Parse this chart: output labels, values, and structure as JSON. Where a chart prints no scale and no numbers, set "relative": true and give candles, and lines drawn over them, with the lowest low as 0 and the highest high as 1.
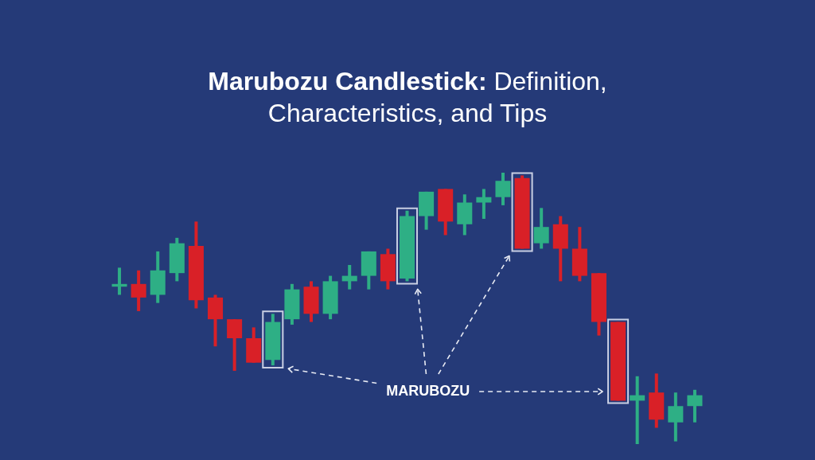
{
  "chart_data": {
    "type": "candlestick",
    "title": "Marubozu Candlestick: Definition, Characteristics, and Tips",
    "categories": [
      null,
      null,
      null,
      null,
      null,
      null,
      null,
      null,
      null,
      null,
      null,
      null,
      null,
      null,
      null,
      null,
      null,
      null,
      null,
      null,
      null,
      null,
      null,
      null,
      null,
      null,
      null,
      null,
      null,
      null,
      null
    ],
    "ohlc": [
      [
        0.58,
        0.65,
        0.55,
        0.59
      ],
      [
        0.59,
        0.64,
        0.49,
        0.54
      ],
      [
        0.55,
        0.71,
        0.52,
        0.64
      ],
      [
        0.63,
        0.76,
        0.6,
        0.74
      ],
      [
        0.73,
        0.82,
        0.5,
        0.53
      ],
      [
        0.54,
        0.55,
        0.36,
        0.46
      ],
      [
        0.46,
        0.46,
        0.27,
        0.39
      ],
      [
        0.39,
        0.43,
        0.3,
        0.3
      ],
      [
        0.31,
        0.48,
        0.29,
        0.45
      ],
      [
        0.46,
        0.59,
        0.44,
        0.57
      ],
      [
        0.58,
        0.6,
        0.45,
        0.48
      ],
      [
        0.48,
        0.62,
        0.46,
        0.6
      ],
      [
        0.6,
        0.66,
        0.57,
        0.62
      ],
      [
        0.62,
        0.71,
        0.57,
        0.71
      ],
      [
        0.7,
        0.72,
        0.57,
        0.6
      ],
      [
        0.61,
        0.86,
        0.6,
        0.84
      ],
      [
        0.84,
        0.93,
        0.79,
        0.93
      ],
      [
        0.94,
        0.94,
        0.77,
        0.82
      ],
      [
        0.81,
        0.92,
        0.77,
        0.89
      ],
      [
        0.89,
        0.94,
        0.83,
        0.91
      ],
      [
        0.91,
        1,
        0.88,
        0.97
      ],
      [
        0.98,
        0.99,
        0.72,
        0.72
      ],
      [
        0.74,
        0.87,
        0.72,
        0.8
      ],
      [
        0.81,
        0.84,
        0.6,
        0.72
      ],
      [
        0.72,
        0.8,
        0.6,
        0.62
      ],
      [
        0.63,
        0.63,
        0.4,
        0.45
      ],
      [
        0.45,
        0.45,
        0.16,
        0.16
      ],
      [
        0.16,
        0.25,
        0,
        0.18
      ],
      [
        0.19,
        0.26,
        0.06,
        0.09
      ],
      [
        0.08,
        0.19,
        0.01,
        0.14
      ],
      [
        0.14,
        0.2,
        0.08,
        0.18
      ]
    ],
    "colors": [
      "#2eaf85",
      "#d92027",
      "#2eaf85",
      "#2eaf85",
      "#d92027",
      "#d92027",
      "#d92027",
      "#d92027",
      "#2eaf85",
      "#2eaf85",
      "#d92027",
      "#2eaf85",
      "#2eaf85",
      "#2eaf85",
      "#d92027",
      "#2eaf85",
      "#2eaf85",
      "#d92027",
      "#2eaf85",
      "#2eaf85",
      "#2eaf85",
      "#d92027",
      "#2eaf85",
      "#d92027",
      "#d92027",
      "#d92027",
      "#d92027",
      "#2eaf85",
      "#d92027",
      "#2eaf85",
      "#2eaf85"
    ],
    "relative": true,
    "annotations": [
      "MARUBOZU"
    ]
  }
}
